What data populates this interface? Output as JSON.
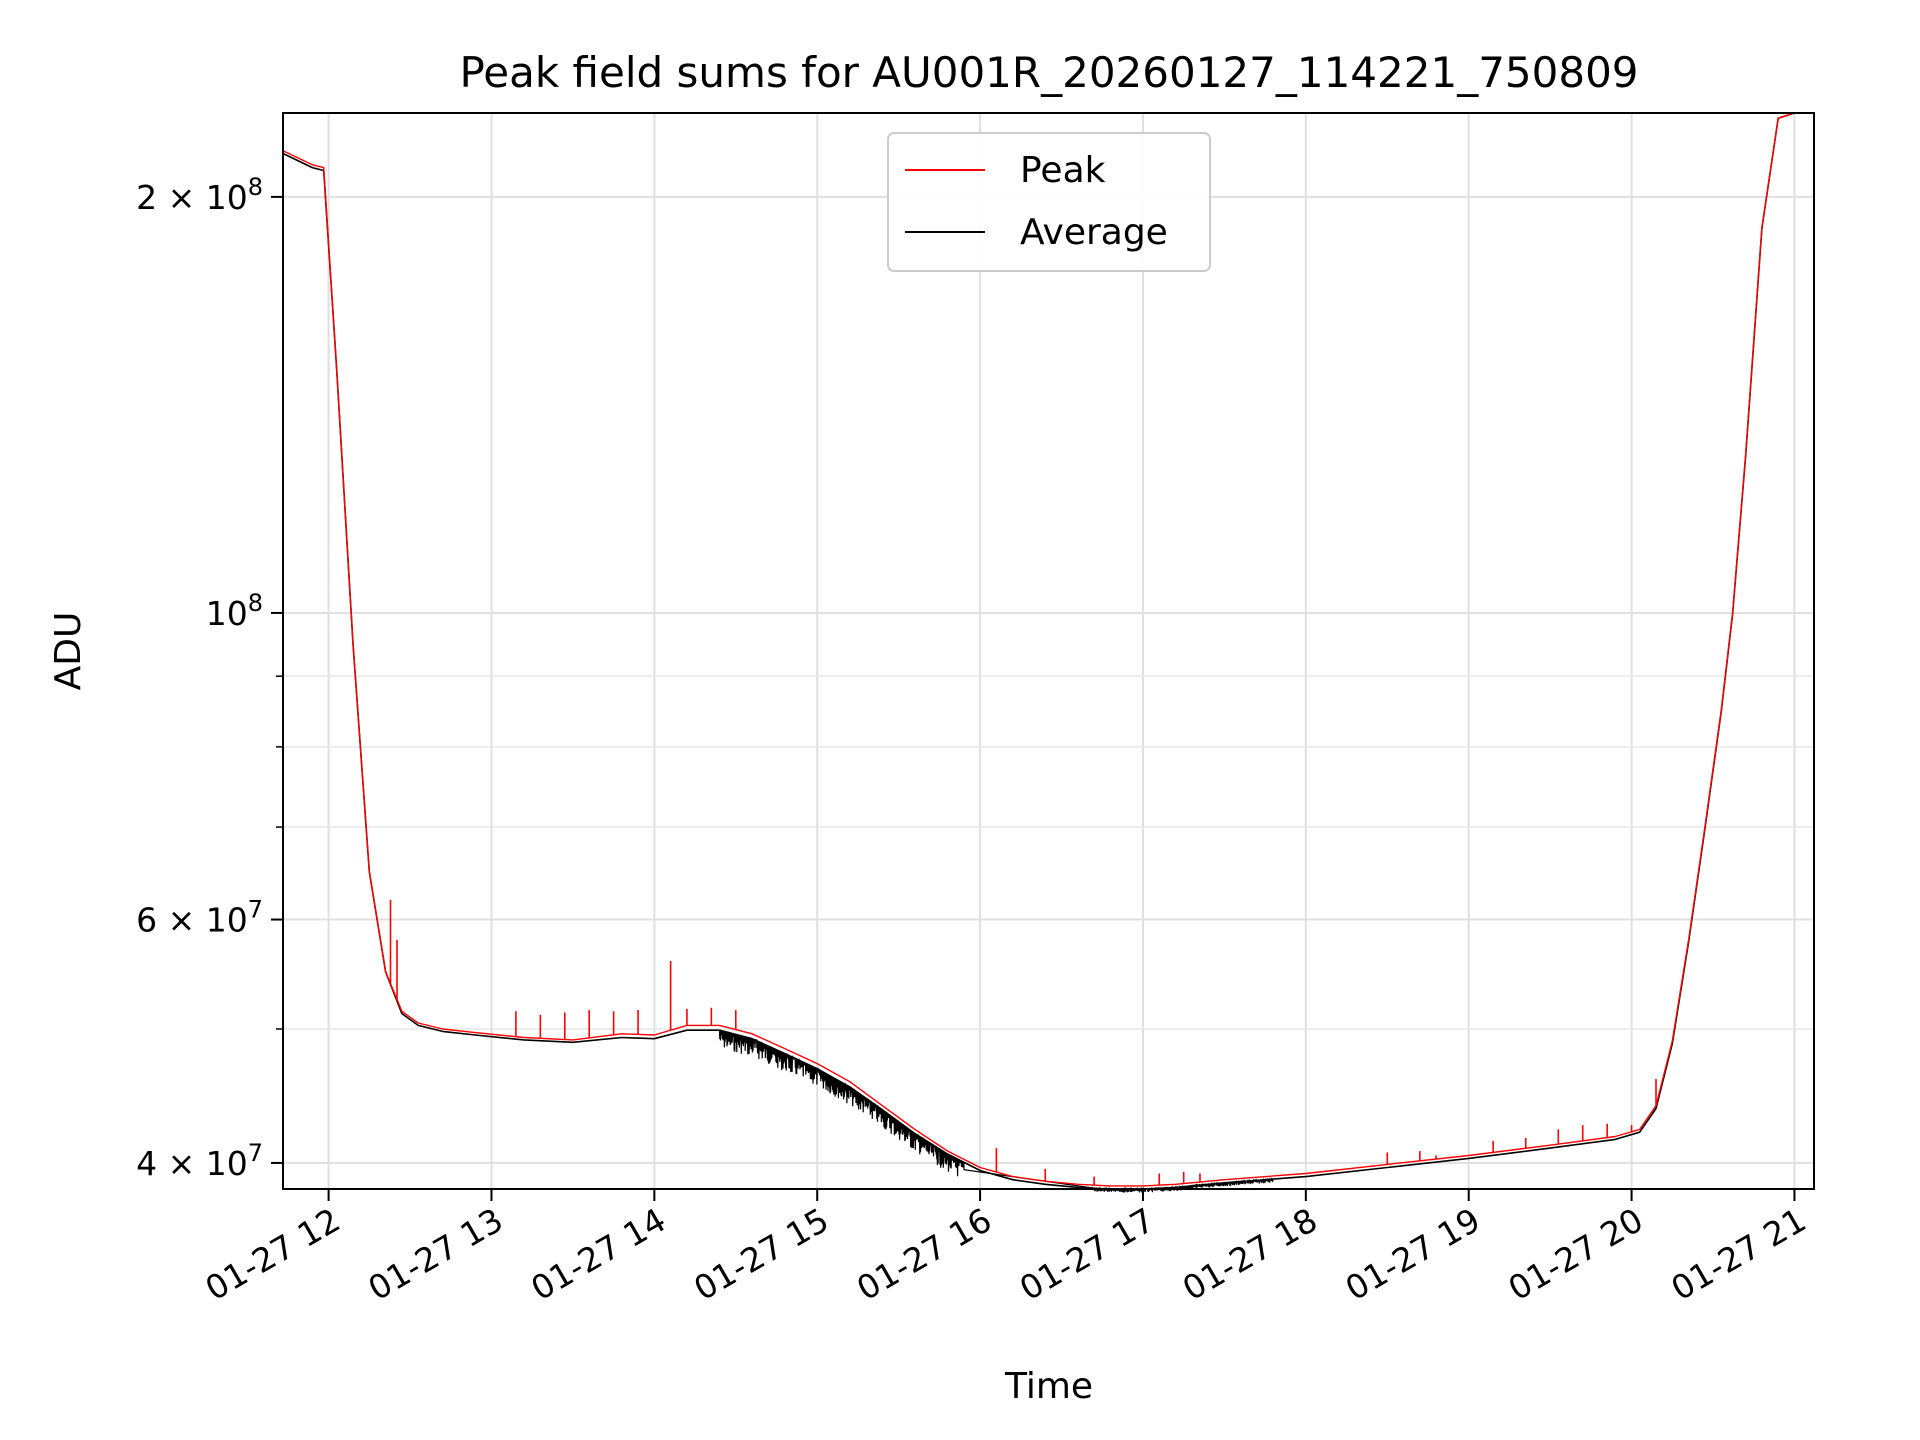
{
  "chart_data": {
    "type": "line",
    "title": "Peak field sums for AU001R_20260127_114221_750809",
    "xlabel": "Time",
    "ylabel": "ADU",
    "yscale": "log",
    "grid": true,
    "legend_position": "top-center",
    "xlim": [
      11.72,
      21.12
    ],
    "ylim": [
      38300000,
      230000000
    ],
    "x_unit": "hours on 2026-01-27",
    "x_ticks": [
      {
        "value": 12,
        "label": "01-27 12"
      },
      {
        "value": 13,
        "label": "01-27 13"
      },
      {
        "value": 14,
        "label": "01-27 14"
      },
      {
        "value": 15,
        "label": "01-27 15"
      },
      {
        "value": 16,
        "label": "01-27 16"
      },
      {
        "value": 17,
        "label": "01-27 17"
      },
      {
        "value": 18,
        "label": "01-27 18"
      },
      {
        "value": 19,
        "label": "01-27 19"
      },
      {
        "value": 20,
        "label": "01-27 20"
      },
      {
        "value": 21,
        "label": "01-27 21"
      }
    ],
    "y_ticks_major": [
      {
        "value": 40000000,
        "mantissa": "4",
        "exponent": "7"
      },
      {
        "value": 60000000,
        "mantissa": "6",
        "exponent": "7"
      },
      {
        "value": 100000000,
        "mantissa": "",
        "exponent": "8"
      },
      {
        "value": 200000000,
        "mantissa": "2",
        "exponent": "8"
      }
    ],
    "y_ticks_minor": [
      50000000,
      70000000,
      80000000,
      90000000
    ],
    "times_symbol": "×",
    "base": "10",
    "series": [
      {
        "name": "Peak",
        "color": "#ff0000",
        "x": [
          11.72,
          11.9,
          11.97,
          12.05,
          12.15,
          12.25,
          12.35,
          12.45,
          12.55,
          12.7,
          12.9,
          13.2,
          13.5,
          13.8,
          14.0,
          14.2,
          14.4,
          14.6,
          14.8,
          15.0,
          15.2,
          15.4,
          15.6,
          15.8,
          16.0,
          16.2,
          16.4,
          16.6,
          16.8,
          17.0,
          17.2,
          17.5,
          18.0,
          18.5,
          19.0,
          19.5,
          19.9,
          20.05,
          20.15,
          20.25,
          20.35,
          20.45,
          20.55,
          20.62,
          20.7,
          20.8,
          20.9,
          21.0,
          21.12
        ],
        "y": [
          216000000,
          211000000,
          210000000,
          150000000,
          95000000,
          65000000,
          55000000,
          51500000,
          50500000,
          50000000,
          49700000,
          49300000,
          49100000,
          49600000,
          49500000,
          50300000,
          50300000,
          49600000,
          48400000,
          47200000,
          45800000,
          44000000,
          42300000,
          40800000,
          39700000,
          39100000,
          38800000,
          38600000,
          38500000,
          38500000,
          38600000,
          38900000,
          39300000,
          39900000,
          40500000,
          41200000,
          41800000,
          42300000,
          44000000,
          49000000,
          58000000,
          70000000,
          85000000,
          100000000,
          130000000,
          190000000,
          228000000,
          230000000,
          230000000
        ],
        "spikes": [
          {
            "x": 12.38,
            "y": 62000000
          },
          {
            "x": 12.42,
            "y": 58000000
          },
          {
            "x": 13.15,
            "y": 51500000
          },
          {
            "x": 13.3,
            "y": 51200000
          },
          {
            "x": 13.45,
            "y": 51400000
          },
          {
            "x": 13.6,
            "y": 51600000
          },
          {
            "x": 13.75,
            "y": 51500000
          },
          {
            "x": 13.9,
            "y": 51600000
          },
          {
            "x": 14.1,
            "y": 56000000
          },
          {
            "x": 14.2,
            "y": 51700000
          },
          {
            "x": 14.35,
            "y": 51800000
          },
          {
            "x": 14.5,
            "y": 51600000
          },
          {
            "x": 16.1,
            "y": 41000000
          },
          {
            "x": 16.4,
            "y": 39600000
          },
          {
            "x": 16.7,
            "y": 39100000
          },
          {
            "x": 17.1,
            "y": 39300000
          },
          {
            "x": 17.25,
            "y": 39400000
          },
          {
            "x": 17.35,
            "y": 39300000
          },
          {
            "x": 18.5,
            "y": 40700000
          },
          {
            "x": 18.7,
            "y": 40800000
          },
          {
            "x": 18.8,
            "y": 40500000
          },
          {
            "x": 19.15,
            "y": 41500000
          },
          {
            "x": 19.35,
            "y": 41700000
          },
          {
            "x": 19.55,
            "y": 42300000
          },
          {
            "x": 19.7,
            "y": 42600000
          },
          {
            "x": 19.85,
            "y": 42700000
          },
          {
            "x": 20.0,
            "y": 42600000
          },
          {
            "x": 20.15,
            "y": 46000000
          }
        ]
      },
      {
        "name": "Average",
        "color": "#000000",
        "x": [
          11.72,
          11.9,
          11.97,
          12.05,
          12.15,
          12.25,
          12.35,
          12.45,
          12.55,
          12.7,
          12.9,
          13.2,
          13.5,
          13.8,
          14.0,
          14.2,
          14.4,
          14.6,
          14.8,
          15.0,
          15.2,
          15.4,
          15.6,
          15.8,
          16.0,
          16.2,
          16.4,
          16.6,
          16.8,
          17.0,
          17.2,
          17.5,
          18.0,
          18.5,
          19.0,
          19.5,
          19.9,
          20.05,
          20.15,
          20.25,
          20.35,
          20.45,
          20.55,
          20.62,
          20.7,
          20.8,
          20.9,
          21.0,
          21.12
        ],
        "y": [
          215000000,
          210000000,
          209000000,
          150000000,
          95000000,
          65000000,
          55000000,
          51300000,
          50300000,
          49800000,
          49500000,
          49100000,
          48900000,
          49300000,
          49200000,
          49900000,
          49900000,
          49200000,
          48000000,
          46800000,
          45400000,
          43700000,
          42000000,
          40600000,
          39500000,
          38900000,
          38600000,
          38400000,
          38300000,
          38300000,
          38400000,
          38700000,
          39100000,
          39700000,
          40300000,
          41000000,
          41600000,
          42100000,
          43800000,
          48800000,
          57800000,
          69800000,
          84800000,
          99800000,
          129800000,
          189800000,
          228000000,
          230000000,
          230000000
        ],
        "noise_ranges": [
          {
            "x0": 14.4,
            "x1": 15.9,
            "depth": 0.03
          },
          {
            "x0": 16.7,
            "x1": 17.8,
            "depth": 0.006
          }
        ]
      }
    ]
  }
}
